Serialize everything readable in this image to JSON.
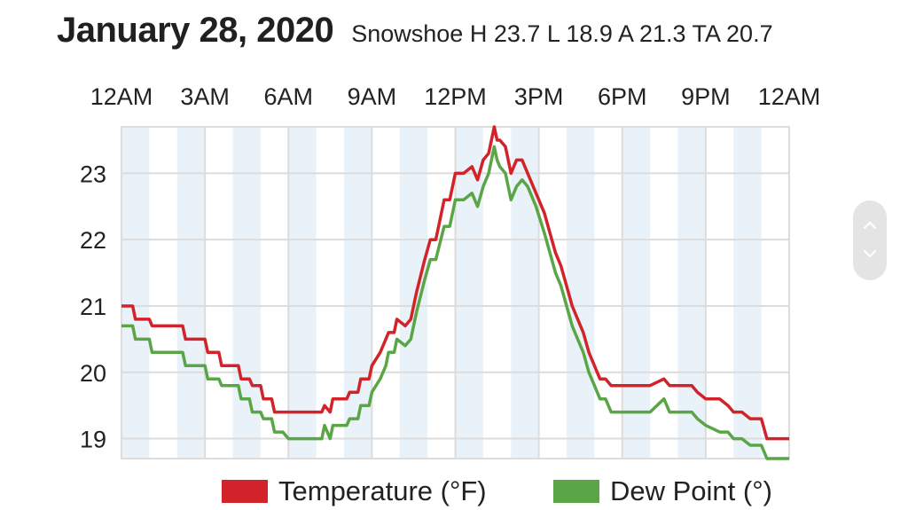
{
  "header": {
    "title": "January 28, 2020",
    "summary": "Snowshoe H 23.7 L 18.9 A 21.3 TA 20.7"
  },
  "colors": {
    "temperature": "#d2232a",
    "dew_point": "#5aa646",
    "band": "#eaf2f9",
    "grid": "#dcdcdc"
  },
  "icons": {
    "scroll_up": "chevron-up-icon",
    "scroll_down": "chevron-down-icon"
  },
  "chart_data": {
    "type": "line",
    "x_tick_labels": [
      "12AM",
      "3AM",
      "6AM",
      "9AM",
      "12PM",
      "3PM",
      "6PM",
      "9PM",
      "12AM"
    ],
    "y_tick_labels": [
      "23",
      "22",
      "21",
      "20",
      "19"
    ],
    "xlim": [
      0,
      24
    ],
    "ylim": [
      18.7,
      23.7
    ],
    "grid": true,
    "legend_position": "bottom",
    "series": [
      {
        "name": "Temperature (°F)",
        "color": "#d2232a",
        "x": [
          0,
          0.4,
          0.5,
          1.0,
          1.1,
          2.2,
          2.3,
          3.0,
          3.1,
          3.5,
          3.6,
          4.2,
          4.3,
          4.6,
          4.7,
          5.0,
          5.1,
          5.4,
          5.5,
          5.8,
          6.0,
          6.1,
          7.2,
          7.3,
          7.5,
          7.6,
          8.1,
          8.2,
          8.5,
          8.6,
          8.9,
          9.0,
          9.3,
          9.5,
          9.6,
          9.8,
          9.9,
          10.2,
          10.4,
          10.6,
          10.9,
          11.1,
          11.3,
          11.6,
          11.8,
          12.0,
          12.3,
          12.6,
          12.8,
          13.0,
          13.2,
          13.4,
          13.5,
          13.6,
          13.8,
          14.0,
          14.2,
          14.4,
          14.6,
          14.9,
          15.2,
          15.4,
          15.6,
          15.8,
          16.0,
          16.2,
          16.4,
          16.6,
          16.8,
          17.0,
          17.2,
          17.4,
          17.6,
          17.8,
          18.0,
          18.5,
          19.0,
          19.5,
          19.7,
          20.0,
          20.5,
          20.7,
          21.0,
          21.5,
          21.8,
          22.0,
          22.3,
          22.6,
          23.0,
          23.2,
          24.0
        ],
        "y": [
          21.0,
          21.0,
          20.8,
          20.8,
          20.7,
          20.7,
          20.5,
          20.5,
          20.3,
          20.3,
          20.1,
          20.1,
          19.9,
          19.9,
          19.8,
          19.8,
          19.6,
          19.6,
          19.4,
          19.4,
          19.4,
          19.4,
          19.4,
          19.5,
          19.4,
          19.6,
          19.6,
          19.7,
          19.7,
          19.9,
          19.9,
          20.1,
          20.3,
          20.5,
          20.6,
          20.6,
          20.8,
          20.7,
          20.8,
          21.2,
          21.7,
          22.0,
          22.0,
          22.6,
          22.6,
          23.0,
          23.0,
          23.1,
          22.9,
          23.2,
          23.3,
          23.7,
          23.5,
          23.5,
          23.4,
          23.0,
          23.2,
          23.2,
          23.0,
          22.7,
          22.4,
          22.1,
          21.8,
          21.6,
          21.3,
          21.0,
          20.8,
          20.6,
          20.3,
          20.1,
          19.9,
          19.9,
          19.8,
          19.8,
          19.8,
          19.8,
          19.8,
          19.9,
          19.8,
          19.8,
          19.8,
          19.7,
          19.6,
          19.6,
          19.5,
          19.4,
          19.4,
          19.3,
          19.3,
          19.0,
          19.0
        ]
      },
      {
        "name": "Dew Point (°)",
        "color": "#5aa646",
        "x": [
          0,
          0.4,
          0.5,
          1.0,
          1.1,
          2.2,
          2.3,
          3.0,
          3.1,
          3.5,
          3.6,
          4.2,
          4.3,
          4.6,
          4.7,
          5.0,
          5.1,
          5.4,
          5.5,
          5.8,
          6.0,
          6.1,
          7.2,
          7.3,
          7.5,
          7.6,
          8.1,
          8.2,
          8.5,
          8.6,
          8.9,
          9.0,
          9.3,
          9.5,
          9.6,
          9.8,
          9.9,
          10.2,
          10.4,
          10.6,
          10.9,
          11.1,
          11.3,
          11.6,
          11.8,
          12.0,
          12.3,
          12.6,
          12.8,
          13.0,
          13.2,
          13.4,
          13.5,
          13.6,
          13.8,
          14.0,
          14.2,
          14.4,
          14.6,
          14.9,
          15.2,
          15.4,
          15.6,
          15.8,
          16.0,
          16.2,
          16.4,
          16.6,
          16.8,
          17.0,
          17.2,
          17.4,
          17.6,
          17.8,
          18.0,
          18.5,
          19.0,
          19.5,
          19.7,
          20.0,
          20.5,
          20.7,
          21.0,
          21.5,
          21.8,
          22.0,
          22.3,
          22.6,
          23.0,
          23.2,
          24.0
        ],
        "y": [
          20.7,
          20.7,
          20.5,
          20.5,
          20.3,
          20.3,
          20.1,
          20.1,
          19.9,
          19.9,
          19.8,
          19.8,
          19.6,
          19.6,
          19.4,
          19.4,
          19.3,
          19.3,
          19.1,
          19.1,
          19.0,
          19.0,
          19.0,
          19.2,
          19.0,
          19.2,
          19.2,
          19.3,
          19.3,
          19.5,
          19.5,
          19.7,
          19.9,
          20.1,
          20.3,
          20.3,
          20.5,
          20.4,
          20.5,
          20.9,
          21.4,
          21.7,
          21.7,
          22.2,
          22.2,
          22.6,
          22.6,
          22.7,
          22.5,
          22.8,
          23.0,
          23.4,
          23.2,
          23.1,
          23.0,
          22.6,
          22.8,
          22.9,
          22.8,
          22.5,
          22.1,
          21.8,
          21.5,
          21.3,
          21.0,
          20.7,
          20.5,
          20.3,
          20.0,
          19.8,
          19.6,
          19.6,
          19.4,
          19.4,
          19.4,
          19.4,
          19.4,
          19.6,
          19.4,
          19.4,
          19.4,
          19.3,
          19.2,
          19.1,
          19.1,
          19.0,
          19.0,
          18.9,
          18.9,
          18.7,
          18.7
        ]
      }
    ]
  }
}
